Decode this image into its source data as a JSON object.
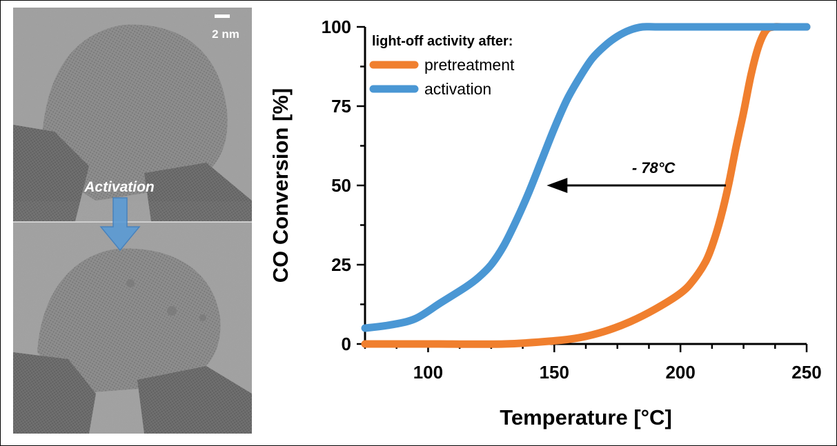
{
  "tem_panel": {
    "scale_bar_label": "2 nm",
    "arrow_label": "Activation"
  },
  "chart_data": {
    "type": "line",
    "xlabel": "Temperature [°C]",
    "ylabel": "CO Conversion [%]",
    "xlim": [
      75,
      250
    ],
    "ylim": [
      0,
      100
    ],
    "xticks": [
      100,
      150,
      200,
      250
    ],
    "yticks": [
      0,
      25,
      50,
      75,
      100
    ],
    "grid": false,
    "legend": {
      "title": "light-off activity after:",
      "position": "top-left"
    },
    "series": [
      {
        "name": "pretreatment",
        "color": "#F07F2E",
        "x": [
          75,
          100,
          130,
          150,
          160,
          170,
          180,
          190,
          200,
          205,
          210,
          213,
          216,
          219,
          222,
          225,
          228,
          231,
          234,
          237,
          240,
          250
        ],
        "y": [
          0,
          0,
          0,
          1,
          2,
          4,
          7,
          11,
          16,
          20,
          26,
          32,
          40,
          50,
          62,
          73,
          85,
          94,
          99,
          100,
          100,
          100
        ]
      },
      {
        "name": "activation",
        "color": "#4A97D4",
        "x": [
          75,
          85,
          95,
          105,
          115,
          120,
          125,
          130,
          135,
          140,
          145,
          150,
          155,
          160,
          165,
          170,
          175,
          180,
          185,
          190,
          200,
          250
        ],
        "y": [
          5,
          6,
          8,
          13,
          18,
          21,
          25,
          31,
          39,
          48,
          58,
          68,
          77,
          84,
          90,
          94,
          97,
          99,
          100,
          100,
          100,
          100
        ]
      }
    ],
    "annotation": {
      "text": "- 78°C",
      "arrow_from_x": 218,
      "arrow_to_x": 147,
      "arrow_y": 50
    }
  }
}
